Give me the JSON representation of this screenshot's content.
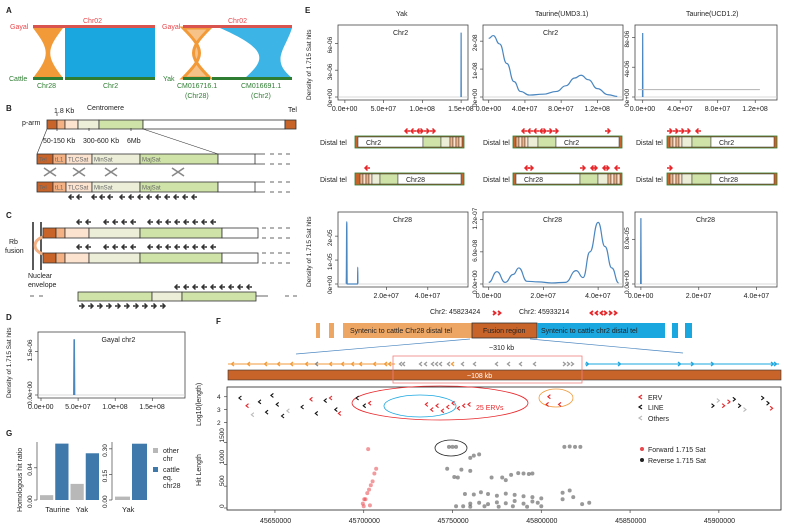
{
  "panels": {
    "A": "A",
    "B": "B",
    "C": "C",
    "D": "D",
    "E": "E",
    "F": "F",
    "G": "G"
  },
  "panel_a": {
    "left": {
      "top_species": "Gayal",
      "top_chr": "Chr02",
      "bottom_species": "Cattle",
      "bottom_chr1": "Chr28",
      "bottom_chr2": "Chr2"
    },
    "right": {
      "top_species": "Gayal",
      "top_chr": "Chr02",
      "bottom_species": "Yak",
      "bottom_chr1": "CM016716.1",
      "bottom_chr1_sub": "(Chr28)",
      "bottom_chr2": "CM016691.1",
      "bottom_chr2_sub": "(Chr2)"
    }
  },
  "panel_b": {
    "size_1": "1.8 Kb",
    "centromere": "Centromere",
    "tel": "Tel",
    "p_arm": "p-arm",
    "size_2": "50-150 Kb",
    "size_3": "300-600 Kb",
    "size_4": "6Mb",
    "segments": [
      "Tel",
      "tL1",
      "TLCSat",
      "MinSat",
      "MajSat"
    ]
  },
  "panel_c": {
    "rb_fusion_1": "Rb",
    "rb_fusion_2": "fusion",
    "envelope_1": "Nuclear",
    "envelope_2": "envelope"
  },
  "panel_e": {
    "columns": [
      "Yak",
      "Taurine(UMD3.1)",
      "Taurine(UCD1.2)"
    ],
    "distal_tel": "Distal tel",
    "chr2": "Chr2",
    "chr28": "Chr28"
  },
  "panel_f": {
    "pos1": "Chr2: 45823424",
    "pos2": "Chr2: 45933214",
    "block_chr28": "Syntenic  to cattle Chr28 distal tel",
    "block_fusion": "Fusion region",
    "block_chr2": "Syntenic to cattle chr2 distal tel",
    "span_310": "~310 kb",
    "span_108": "~108 kb",
    "erv_count": "25 ERVs",
    "legend": {
      "erv": "ERV",
      "line": "LINE",
      "others": "Others",
      "forward": "Forward 1.715 Sat",
      "reverse": "Reverse 1.715 Sat"
    },
    "ylabel_top": "Log10(length)",
    "ylabel_bottom": "Hit Length"
  },
  "panel_g": {
    "ylabel": "Homologous hit ratio",
    "legend_other": [
      "other",
      "chr"
    ],
    "legend_cattle": [
      "cattle",
      "eq.",
      "chr28"
    ]
  },
  "colors": {
    "gayal": "#e8474c",
    "cattle": "#2e7d32",
    "chr28": "#f29a38",
    "chr2": "#1aa7e0",
    "tel": "#c8642a",
    "majsat": "#cfe3a8",
    "minsat": "#eceed8",
    "density": "#4a86c0",
    "bar_other": "#b8b8b8",
    "bar_cattle": "#3f78aa",
    "erv": "#e8262a",
    "forward": "#e8474c",
    "reverse": "#333333"
  },
  "chart_data": [
    {
      "id": "D",
      "type": "line",
      "title": "Gayal chr2",
      "ylabel": "Density of 1.715 Sat hits",
      "xlim": [
        0,
        190000000.0
      ],
      "ylim": [
        0,
        2e-06
      ],
      "xticks": [
        {
          "v": 0,
          "label": "0.0e+00"
        },
        {
          "v": 50000000.0,
          "label": "5.0e+07"
        },
        {
          "v": 100000000.0,
          "label": "1.0e+08"
        },
        {
          "v": 150000000.0,
          "label": "1.5e+08"
        }
      ],
      "yticks": [
        {
          "v": 0,
          "label": "0.0e+00"
        },
        {
          "v": 1.5e-06,
          "label": "1.5e-06"
        }
      ],
      "series": [
        {
          "x": [
            44000000.0,
            44500000.0,
            45000000.0,
            45500000.0
          ],
          "y": [
            0,
            1.9e-06,
            1.9e-06,
            0
          ]
        }
      ]
    },
    {
      "id": "E1",
      "type": "line",
      "title": "Chr2",
      "ylabel": "Density of 1.715 Sat hits",
      "xlim": [
        -5000000.0,
        155000000.0
      ],
      "ylim": [
        0,
        7.5e-06
      ],
      "xticks": [
        {
          "v": 0,
          "label": "0.0e+00"
        },
        {
          "v": 50000000.0,
          "label": "5.0e+07"
        },
        {
          "v": 100000000.0,
          "label": "1.0e+08"
        },
        {
          "v": 150000000.0,
          "label": "1.5e+08"
        }
      ],
      "yticks": [
        {
          "v": 0,
          "label": "0e+00"
        },
        {
          "v": 3e-06,
          "label": "3e-06"
        },
        {
          "v": 6e-06,
          "label": "6e-06"
        }
      ],
      "series": [
        {
          "x": [
            149800000.0,
            150000000.0,
            150200000.0
          ],
          "y": [
            0,
            7.2e-06,
            0
          ]
        }
      ]
    },
    {
      "id": "E2",
      "type": "line",
      "title": "Chr2",
      "ylabel": "",
      "xlim": [
        -3000000.0,
        145000000.0
      ],
      "ylim": [
        0,
        2.4e-08
      ],
      "xticks": [
        {
          "v": 0,
          "label": "0.0e+00"
        },
        {
          "v": 40000000.0,
          "label": "4.0e+07"
        },
        {
          "v": 80000000.0,
          "label": "8.0e+07"
        },
        {
          "v": 120000000.0,
          "label": "1.2e+08"
        }
      ],
      "yticks": [
        {
          "v": 0,
          "label": "0e+00"
        },
        {
          "v": 1e-08,
          "label": "1e-08"
        },
        {
          "v": 2e-08,
          "label": "2e-08"
        }
      ],
      "series": [
        {
          "x": [
            0,
            5000000.0,
            12000000.0,
            20000000.0,
            28000000.0,
            35000000.0,
            45000000.0,
            60000000.0,
            75000000.0,
            85000000.0,
            95000000.0,
            102000000.0,
            110000000.0,
            120000000.0,
            132000000.0,
            142000000.0
          ],
          "y": [
            2.1e-08,
            2.2e-08,
            1.9e-08,
            1.2e-08,
            5.5e-09,
            2e-09,
            7e-10,
            1e-09,
            2e-09,
            4e-09,
            6.8e-09,
            7.8e-09,
            6.2e-09,
            3e-09,
            8e-10,
            2e-10
          ]
        }
      ]
    },
    {
      "id": "E3",
      "type": "line",
      "title": "",
      "ylabel": "",
      "xlim": [
        -5000000.0,
        140000000.0
      ],
      "ylim": [
        0,
        9e-06
      ],
      "xticks": [
        {
          "v": 0,
          "label": "0.0e+00"
        },
        {
          "v": 40000000.0,
          "label": "4.0e+07"
        },
        {
          "v": 80000000.0,
          "label": "8.0e+07"
        },
        {
          "v": 120000000.0,
          "label": "1.2e+08"
        }
      ],
      "yticks": [
        {
          "v": 0,
          "label": "0e+00"
        },
        {
          "v": 4e-06,
          "label": "4e-06"
        },
        {
          "v": 8e-06,
          "label": "8e-06"
        }
      ],
      "series": [
        {
          "x": [
            -200000.0,
            0,
            200000.0
          ],
          "y": [
            0,
            8.6e-06,
            0
          ]
        },
        {
          "x": [
            -5000000.0,
            125000000.0
          ],
          "y": [
            1e-06,
            1e-06
          ],
          "color": "#bbbbbb"
        }
      ]
    },
    {
      "id": "E4",
      "type": "line",
      "title": "Chr28",
      "ylabel": "Density of 1.715 Sat hits",
      "xlim": [
        -2000000.0,
        58000000.0
      ],
      "ylim": [
        0,
        2.8e-05
      ],
      "xticks": [
        {
          "v": 20000000.0,
          "label": "2.0e+07"
        },
        {
          "v": 40000000.0,
          "label": "4.0e+07"
        }
      ],
      "yticks": [
        {
          "v": 0,
          "label": "0e+00"
        },
        {
          "v": 1e-05,
          "label": "1e-05"
        },
        {
          "v": 2e-05,
          "label": "2e-05"
        }
      ],
      "series": [
        {
          "x": [
            500000.0,
            800000.0,
            1000000.0,
            1200000.0,
            6000000.0,
            6100000.0,
            6200000.0
          ],
          "y": [
            0,
            2.6e-05,
            0,
            0,
            0,
            7e-06,
            0
          ]
        }
      ]
    },
    {
      "id": "E5",
      "type": "line",
      "title": "Chr28",
      "ylabel": "",
      "xlim": [
        -1000000.0,
        48000000.0
      ],
      "ylim": [
        0,
        1.25e-07
      ],
      "xticks": [
        {
          "v": 0,
          "label": "0.0e+00"
        },
        {
          "v": 20000000.0,
          "label": "2.0e+07"
        },
        {
          "v": 40000000.0,
          "label": "4.0e+07"
        }
      ],
      "yticks": [
        {
          "v": 0,
          "label": "0.0e+00"
        },
        {
          "v": 6e-08,
          "label": "6.0e-08"
        },
        {
          "v": 1.2e-07,
          "label": "1.2e-07"
        }
      ],
      "series": [
        {
          "x": [
            0,
            3000000.0,
            6000000.0,
            9000000.0,
            11000000.0,
            14000000.0,
            18000000.0,
            23000000.0,
            28000000.0,
            32000000.0,
            34500000.0,
            37000000.0,
            40000000.0,
            42500000.0,
            45000000.0,
            47500000.0
          ],
          "y": [
            3e-09,
            2.3e-08,
            3e-09,
            1.8e-08,
            3e-08,
            5e-09,
            4e-09,
            2e-09,
            3e-09,
            2.5e-08,
            1.2e-08,
            6e-08,
            1.15e-07,
            7e-08,
            3e-08,
            2e-09
          ]
        }
      ]
    },
    {
      "id": "E6",
      "type": "line",
      "title": "Chr28",
      "ylabel": "",
      "xlim": [
        -1000000.0,
        46000000.0
      ],
      "ylim": [
        0,
        0.00012
      ],
      "xticks": [
        {
          "v": 0,
          "label": "0.0e+00"
        },
        {
          "v": 20000000.0,
          "label": "2.0e+07"
        },
        {
          "v": 40000000.0,
          "label": "4.0e+07"
        }
      ],
      "yticks": [
        {
          "v": 0,
          "label": "0.0e+00"
        },
        {
          "v": 8e-05,
          "label": "8.0e-05"
        }
      ],
      "series": [
        {
          "x": [
            -100000.0,
            0,
            100000.0
          ],
          "y": [
            0,
            0.000118,
            0
          ]
        }
      ]
    },
    {
      "id": "G1",
      "type": "bar",
      "ylabel": "Homologous hit ratio",
      "ylim": [
        0,
        0.072
      ],
      "categories": [
        "Taurine",
        "Yak"
      ],
      "series": [
        {
          "name": "other chr",
          "values": [
            0.006,
            0.02
          ]
        },
        {
          "name": "cattle eq. chr28",
          "values": [
            0.07,
            0.058
          ]
        }
      ],
      "yticks": [
        {
          "v": 0,
          "label": "0.00"
        },
        {
          "v": 0.04,
          "label": "0.04"
        }
      ]
    },
    {
      "id": "G2",
      "type": "bar",
      "ylabel": "",
      "ylim": [
        0,
        0.34
      ],
      "categories": [
        "Yak"
      ],
      "series": [
        {
          "name": "other chr",
          "values": [
            0.02
          ]
        },
        {
          "name": "cattle eq. chr28",
          "values": [
            0.33
          ]
        }
      ],
      "yticks": [
        {
          "v": 0,
          "label": "0.00"
        },
        {
          "v": 0.15,
          "label": "0.15"
        },
        {
          "v": 0.3,
          "label": "0.30"
        }
      ]
    },
    {
      "id": "F",
      "type": "scatter",
      "xlim": [
        45623000,
        45935000
      ],
      "xticks": [
        {
          "v": 45650000,
          "label": "45650000"
        },
        {
          "v": 45700000,
          "label": "45700000"
        },
        {
          "v": 45750000,
          "label": "45750000"
        },
        {
          "v": 45800000,
          "label": "45800000"
        },
        {
          "v": 45850000,
          "label": "45850000"
        },
        {
          "v": 45900000,
          "label": "45900000"
        }
      ],
      "ylim_hits": [
        0,
        1650
      ],
      "yticks_hits": [
        {
          "v": 0,
          "label": "0"
        },
        {
          "v": 500,
          "label": "500"
        },
        {
          "v": 1000,
          "label": "1000"
        },
        {
          "v": 1500,
          "label": "1500"
        }
      ],
      "ylim_log": [
        1.8,
        4.6
      ],
      "yticks_log": [
        {
          "v": 2,
          "label": "2"
        },
        {
          "v": 3,
          "label": "3"
        },
        {
          "v": 4,
          "label": "4"
        }
      ],
      "forward": [
        [
          45699500,
          100
        ],
        [
          45700300,
          200
        ],
        [
          45701000,
          200
        ],
        [
          45702000,
          340
        ],
        [
          45703000,
          420
        ],
        [
          45704000,
          520
        ],
        [
          45705000,
          610
        ],
        [
          45706000,
          790
        ],
        [
          45707000,
          900
        ],
        [
          45702500,
          1350
        ],
        [
          45700000,
          40
        ],
        [
          45703500,
          60
        ]
      ],
      "reverse": [
        [
          45748000,
          1400
        ],
        [
          45750000,
          1400
        ],
        [
          45752000,
          1400
        ],
        [
          45747000,
          900
        ],
        [
          45751000,
          710
        ],
        [
          45753000,
          700
        ],
        [
          45760000,
          1150
        ],
        [
          45762000,
          1200
        ],
        [
          45765000,
          1230
        ],
        [
          45755000,
          880
        ],
        [
          45760000,
          850
        ],
        [
          45772000,
          700
        ],
        [
          45778000,
          700
        ],
        [
          45783000,
          760
        ],
        [
          45787000,
          800
        ],
        [
          45790000,
          790
        ],
        [
          45793000,
          780
        ],
        [
          45795000,
          790
        ],
        [
          45780000,
          640
        ],
        [
          45757000,
          320
        ],
        [
          45762000,
          310
        ],
        [
          45766000,
          360
        ],
        [
          45770000,
          320
        ],
        [
          45775000,
          280
        ],
        [
          45780000,
          330
        ],
        [
          45785000,
          300
        ],
        [
          45790000,
          270
        ],
        [
          45795000,
          250
        ],
        [
          45800000,
          220
        ],
        [
          45760000,
          100
        ],
        [
          45765000,
          120
        ],
        [
          45770000,
          90
        ],
        [
          45775000,
          130
        ],
        [
          45780000,
          110
        ],
        [
          45785000,
          160
        ],
        [
          45790000,
          100
        ],
        [
          45795000,
          150
        ],
        [
          45798000,
          120
        ],
        [
          45752000,
          40
        ],
        [
          45756000,
          40
        ],
        [
          45760000,
          30
        ],
        [
          45768000,
          40
        ],
        [
          45776000,
          30
        ],
        [
          45784000,
          40
        ],
        [
          45792000,
          30
        ],
        [
          45800000,
          40
        ],
        [
          45813000,
          1400
        ],
        [
          45816000,
          1410
        ],
        [
          45819000,
          1400
        ],
        [
          45822000,
          1400
        ],
        [
          45812000,
          350
        ],
        [
          45816000,
          400
        ],
        [
          45812000,
          200
        ],
        [
          45818000,
          250
        ],
        [
          45823000,
          90
        ],
        [
          45827000,
          120
        ]
      ],
      "repeats": [
        [
          45630000,
          3.9,
          "LINE"
        ],
        [
          45634000,
          3.3,
          "ERV"
        ],
        [
          45637000,
          2.6,
          "Others"
        ],
        [
          45641000,
          3.6,
          "LINE"
        ],
        [
          45645000,
          2.8,
          "LINE"
        ],
        [
          45648000,
          4.1,
          "LINE"
        ],
        [
          45651000,
          3.4,
          "LINE"
        ],
        [
          45654000,
          2.5,
          "LINE"
        ],
        [
          45657000,
          2.9,
          "Others"
        ],
        [
          45665000,
          3.2,
          "LINE"
        ],
        [
          45670000,
          3.8,
          "ERV"
        ],
        [
          45673000,
          2.7,
          "LINE"
        ],
        [
          45678000,
          3.7,
          "LINE"
        ],
        [
          45681000,
          3.9,
          "ERV"
        ],
        [
          45684000,
          3.0,
          "LINE"
        ],
        [
          45686000,
          2.7,
          "ERV"
        ],
        [
          45696000,
          3.9,
          "LINE"
        ],
        [
          45700000,
          3.3,
          "LINE"
        ],
        [
          45703000,
          3.5,
          "ERV"
        ],
        [
          45735000,
          3.4,
          "ERV"
        ],
        [
          45738000,
          3.0,
          "ERV"
        ],
        [
          45741000,
          3.3,
          "ERV"
        ],
        [
          45744000,
          2.9,
          "ERV"
        ],
        [
          45747000,
          3.2,
          "ERV"
        ],
        [
          45750000,
          3.5,
          "ERV"
        ],
        [
          45753000,
          3.1,
          "ERV"
        ],
        [
          45756000,
          3.3,
          "ERV"
        ],
        [
          45759000,
          3.4,
          "ERV"
        ],
        [
          45804000,
          4.0,
          "ERV"
        ],
        [
          45803000,
          3.4,
          "ERV"
        ],
        [
          45810000,
          3.4,
          "ERV"
        ],
        [
          45897000,
          3.3,
          "LINE"
        ],
        [
          45900000,
          3.7,
          "Others"
        ],
        [
          45903000,
          3.3,
          "ERV"
        ],
        [
          45906000,
          3.6,
          "ERV"
        ],
        [
          45909000,
          3.8,
          "LINE"
        ],
        [
          45912000,
          3.3,
          "LINE"
        ],
        [
          45915000,
          3.0,
          "Others"
        ],
        [
          45925000,
          3.9,
          "LINE"
        ],
        [
          45928000,
          3.5,
          "LINE"
        ],
        [
          45930000,
          3.1,
          "ERV"
        ]
      ]
    }
  ]
}
